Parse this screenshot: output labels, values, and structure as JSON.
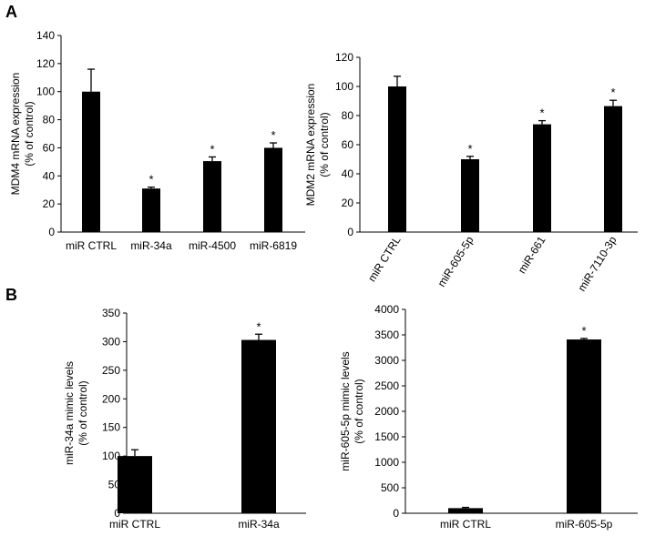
{
  "figure": {
    "panel_a_label": "A",
    "panel_b_label": "B"
  },
  "chart_data": [
    {
      "type": "bar",
      "panel": "A",
      "categories": [
        "miR CTRL",
        "miR-34a",
        "miR-4500",
        "miR-6819"
      ],
      "values": [
        100,
        31,
        50.5,
        60
      ],
      "errors": [
        16,
        1,
        3,
        3.5
      ],
      "significance": [
        "",
        "*",
        "*",
        "*"
      ],
      "ylabel_lines": [
        "MDM4 mRNA expression",
        "(% of control)"
      ],
      "ylim": [
        0,
        140
      ],
      "yticks": [
        0,
        20,
        40,
        60,
        80,
        100,
        120,
        140
      ],
      "tick_labels": [
        "0",
        "20",
        "40",
        "60",
        "80",
        "100",
        "120",
        "140"
      ],
      "xlabel_rotation": 0,
      "bar_color": "#000000"
    },
    {
      "type": "bar",
      "panel": "A",
      "categories": [
        "miR CTRL",
        "miR-605-5p",
        "miR-661",
        "miR-7110-3p"
      ],
      "values": [
        100,
        50,
        74,
        86.5
      ],
      "errors": [
        7,
        2,
        2.5,
        4
      ],
      "significance": [
        "",
        "*",
        "*",
        "*"
      ],
      "ylabel_lines": [
        "MDM2 mRNA expression",
        "(% of control)"
      ],
      "ylim": [
        0,
        120
      ],
      "yticks": [
        0,
        20,
        40,
        60,
        80,
        100,
        120
      ],
      "tick_labels": [
        "0",
        "20",
        "40",
        "60",
        "80",
        "100",
        "120"
      ],
      "xlabel_rotation": -58,
      "bar_color": "#000000"
    },
    {
      "type": "bar",
      "panel": "B",
      "categories": [
        "miR CTRL",
        "miR-34a"
      ],
      "values": [
        100,
        303
      ],
      "errors": [
        11,
        10
      ],
      "significance": [
        "",
        "*"
      ],
      "ylabel_lines": [
        "miR-34a mimic levels",
        "(% of control)"
      ],
      "ylim": [
        0,
        350
      ],
      "yticks": [
        0,
        50,
        100,
        150,
        200,
        250,
        300,
        350
      ],
      "tick_labels": [
        "0",
        "50",
        "100",
        "150",
        "200",
        "250",
        "300",
        "350"
      ],
      "xlabel_rotation": 0,
      "bar_color": "#000000"
    },
    {
      "type": "bar",
      "panel": "B",
      "categories": [
        "miR CTRL",
        "miR-605-5p"
      ],
      "values": [
        100,
        3410
      ],
      "errors": [
        15,
        20
      ],
      "significance": [
        "",
        "*"
      ],
      "ylabel_lines": [
        "miR-605-5p  mimic levels",
        "(% of control)"
      ],
      "ylim": [
        0,
        4000
      ],
      "yticks": [
        0,
        500,
        1000,
        1500,
        2000,
        2500,
        3000,
        3500,
        4000
      ],
      "tick_labels": [
        "0",
        "500",
        "1000",
        "1500",
        "2000",
        "2500",
        "3000",
        "3500",
        "4000"
      ],
      "xlabel_rotation": 0,
      "bar_color": "#000000"
    }
  ]
}
